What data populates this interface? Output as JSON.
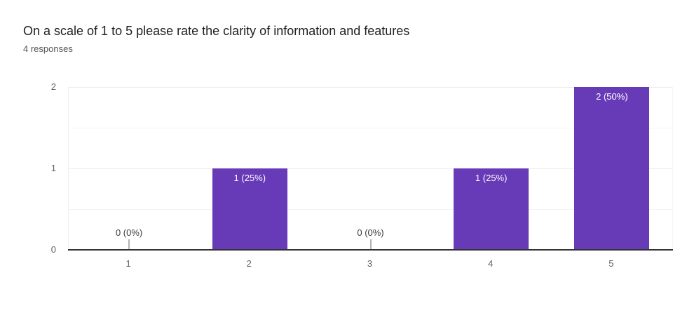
{
  "header": {
    "title": "On a scale of 1 to 5 please rate the clarity of information and features",
    "responses_label": "4 responses"
  },
  "chart_data": {
    "type": "bar",
    "title": "On a scale of 1 to 5 please rate the clarity of information and features",
    "subtitle": "4 responses",
    "categories": [
      "1",
      "2",
      "3",
      "4",
      "5"
    ],
    "values": [
      0,
      1,
      0,
      1,
      2
    ],
    "data_labels": [
      "0 (0%)",
      "1 (25%)",
      "0 (0%)",
      "1 (25%)",
      "2 (50%)"
    ],
    "xlabel": "",
    "ylabel": "",
    "ylim": [
      0,
      2
    ],
    "yticks": [
      0,
      1,
      2
    ],
    "minor_gridlines": [
      0.5,
      1.5
    ],
    "grid": true,
    "legend": "none",
    "colors": {
      "bar": "#673ab7",
      "bar_label_text": "#ffffff",
      "zero_label_text": "#3c3c3c",
      "axis_text": "#616161",
      "baseline": "#333333"
    }
  }
}
